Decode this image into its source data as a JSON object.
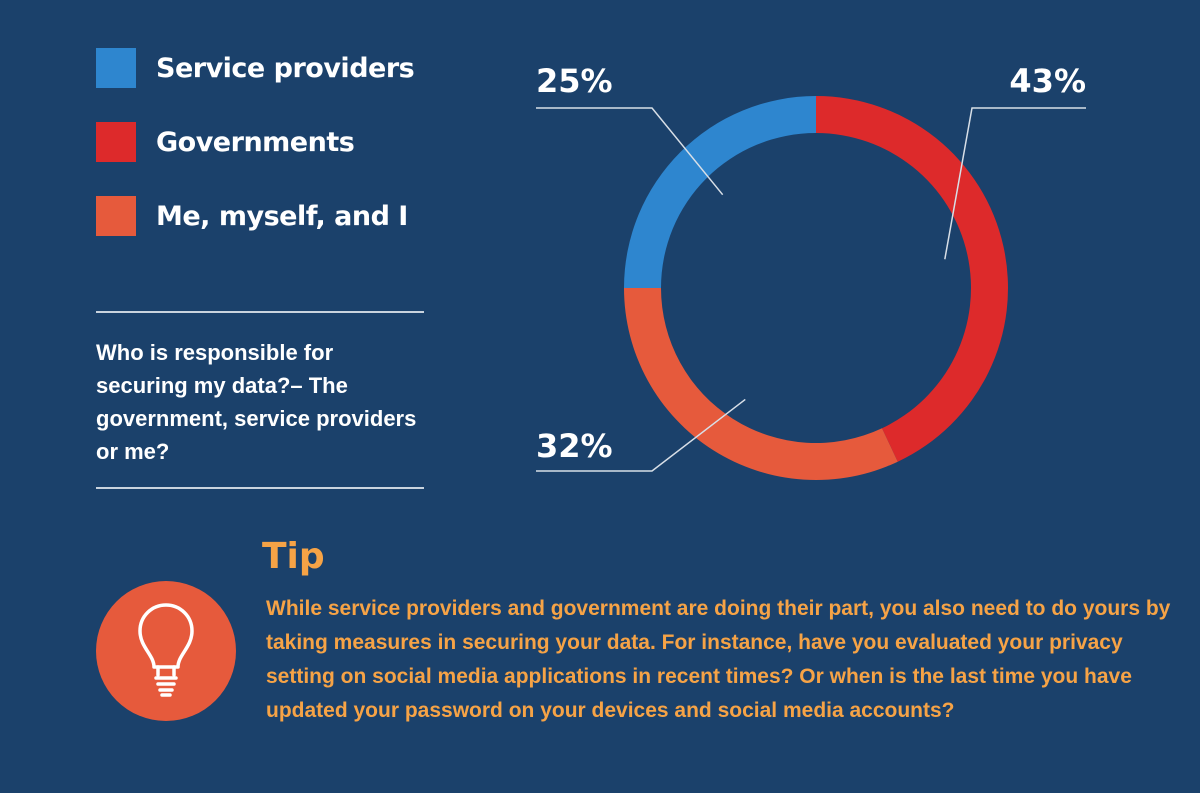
{
  "chart_data": {
    "type": "pie",
    "style": "donut",
    "title": "",
    "categories": [
      "Service providers",
      "Governments",
      "Me, myself, and I"
    ],
    "values": [
      25,
      43,
      32
    ],
    "labels": [
      "25%",
      "43%",
      "32%"
    ],
    "colors": [
      "#2e86cf",
      "#dd2a2b",
      "#e65a3c"
    ],
    "legend_position": "top-left"
  },
  "legend": {
    "items": [
      {
        "label": "Service providers",
        "color": "#2e86cf"
      },
      {
        "label": "Governments",
        "color": "#dd2a2b"
      },
      {
        "label": "Me, myself, and I",
        "color": "#e65a3c"
      }
    ]
  },
  "question": {
    "text": "Who is responsible for securing my data?– The government, service providers or me?"
  },
  "tip": {
    "title": "Tip",
    "icon": "lightbulb-icon",
    "text": "While service providers and government are doing their part, you also need to do yours by taking measures in securing your data. For instance, have you evaluated your privacy setting on social media applications in recent times? Or when is the last time you have updated your password on your devices and social media accounts?"
  }
}
